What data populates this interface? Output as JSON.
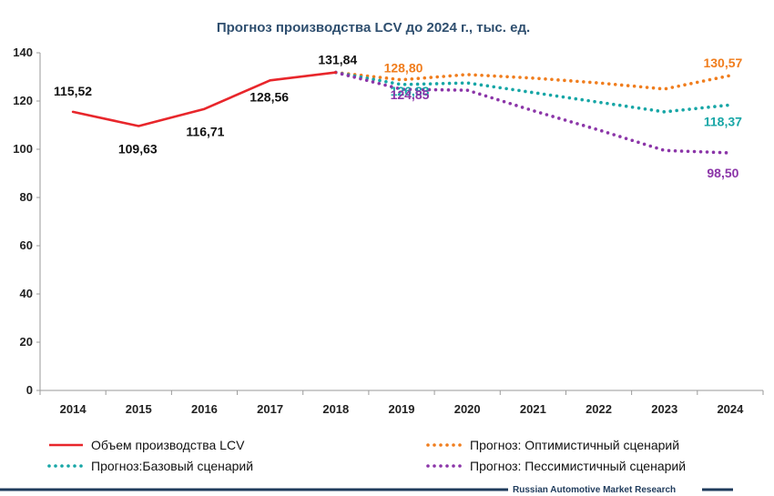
{
  "chart_data": {
    "type": "line",
    "title": "Прогноз производства LCV до 2024 г., тыс. ед.",
    "categories": [
      "2014",
      "2015",
      "2016",
      "2017",
      "2018",
      "2019",
      "2020",
      "2021",
      "2022",
      "2023",
      "2024"
    ],
    "ylim": [
      0,
      140
    ],
    "yticks": [
      "0",
      "20",
      "40",
      "60",
      "80",
      "100",
      "120",
      "140"
    ],
    "grid": false,
    "legend_position": "bottom",
    "series": [
      {
        "name": "Объем производства LCV",
        "color": "#e8262b",
        "style": "solid",
        "values": [
          115.52,
          109.63,
          116.71,
          128.56,
          131.84,
          null,
          null,
          null,
          null,
          null,
          null
        ],
        "labels": [
          {
            "index": 0,
            "text": "115,52"
          },
          {
            "index": 1,
            "text": "109,63"
          },
          {
            "index": 2,
            "text": "116,71"
          },
          {
            "index": 3,
            "text": "128,56"
          },
          {
            "index": 4,
            "text": "131,84"
          }
        ]
      },
      {
        "name": "Прогноз: Оптимистичный сценарий",
        "color": "#f07d1d",
        "style": "dotted",
        "values": [
          null,
          null,
          null,
          null,
          131.84,
          128.8,
          131.0,
          129.5,
          127.5,
          125.0,
          130.57
        ],
        "labels": [
          {
            "index": 5,
            "text": "128,80"
          },
          {
            "index": 10,
            "text": "130,57"
          }
        ]
      },
      {
        "name": "Прогноз:Базовый сценарий",
        "color": "#17a6a6",
        "style": "dotted",
        "values": [
          null,
          null,
          null,
          null,
          131.84,
          126.83,
          127.5,
          123.5,
          119.5,
          115.5,
          118.37
        ],
        "labels": [
          {
            "index": 5,
            "text": "126,83"
          },
          {
            "index": 10,
            "text": "118,37"
          }
        ]
      },
      {
        "name": "Прогноз: Пессимистичный сценарий",
        "color": "#8b35a8",
        "style": "dotted",
        "values": [
          null,
          null,
          null,
          null,
          131.84,
          124.85,
          124.5,
          116.0,
          108.0,
          99.5,
          98.5
        ],
        "labels": [
          {
            "index": 5,
            "text": "124,85"
          },
          {
            "index": 10,
            "text": "98,50"
          }
        ]
      }
    ],
    "legend_order": [
      0,
      2,
      1,
      3
    ],
    "footer": "Russian Automotive Market Research"
  }
}
